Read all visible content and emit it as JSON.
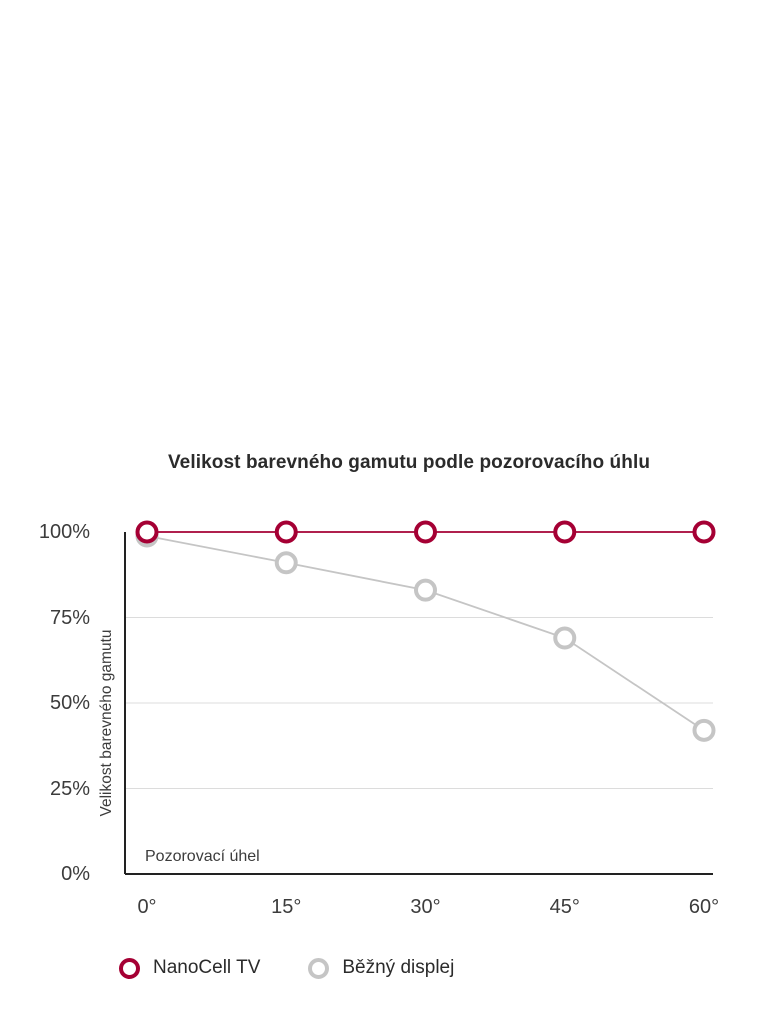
{
  "page": {
    "background": "#ffffff"
  },
  "chart_data": {
    "type": "line",
    "title": "Velikost barevného gamutu podle pozorovacího úhlu",
    "xlabel": "Pozorovací úhel",
    "ylabel": "Velikost barevného gamutu",
    "categories": [
      "0°",
      "15°",
      "30°",
      "45°",
      "60°"
    ],
    "yticks": [
      {
        "label": "100%",
        "value": 100
      },
      {
        "label": "75%",
        "value": 75
      },
      {
        "label": "50%",
        "value": 50
      },
      {
        "label": "25%",
        "value": 25
      },
      {
        "label": "0%",
        "value": 0
      }
    ],
    "gridline_values": [
      75,
      50,
      25
    ],
    "ylim": [
      0,
      100
    ],
    "grid": "horizontal",
    "legend_position": "bottom-left",
    "series": [
      {
        "name": "NanoCell TV",
        "color": "#A50034",
        "marker": "open-circle",
        "values": [
          100,
          100,
          100,
          100,
          100
        ]
      },
      {
        "name": "Běžný displej",
        "color": "#C5C5C5",
        "marker": "open-circle",
        "values": [
          100,
          91,
          83,
          69,
          42
        ]
      }
    ],
    "axis_color": "#222222",
    "gridline_color": "#dcdcdc"
  }
}
